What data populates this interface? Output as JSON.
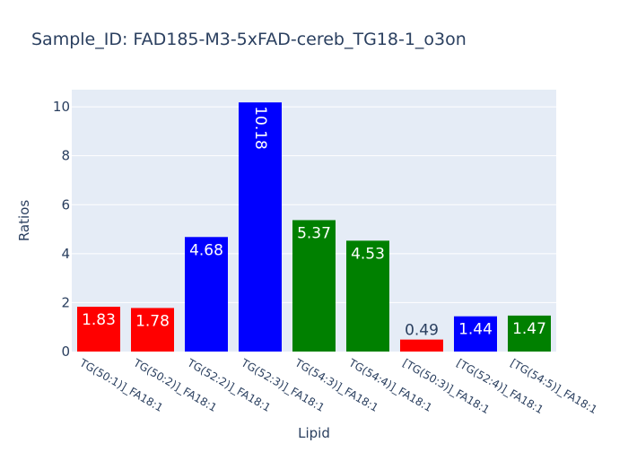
{
  "chart_data": {
    "type": "bar",
    "title": "Sample_ID: FAD185-M3-5xFAD-cereb_TG18-1_o3on",
    "xlabel": "Lipid",
    "ylabel": "Ratios",
    "categories": [
      "TG(50:1)]_FA18:1",
      "TG(50:2)]_FA18:1",
      "TG(52:2)]_FA18:1",
      "TG(52:3)]_FA18:1",
      "TG(54:3)]_FA18:1",
      "TG(54:4)]_FA18:1",
      "[TG(50:3)]_FA18:1",
      "[TG(52:4)]_FA18:1",
      "[TG(54:5)]_FA18:1"
    ],
    "values": [
      1.83,
      1.78,
      4.68,
      10.18,
      5.37,
      4.53,
      0.49,
      1.44,
      1.47
    ],
    "labels": [
      "1.83",
      "1.78",
      "4.68",
      "10.18",
      "5.37",
      "4.53",
      "0.49",
      "1.44",
      "1.47"
    ],
    "colors": [
      "#ff0000",
      "#ff0000",
      "#0000ff",
      "#0000ff",
      "#008000",
      "#008000",
      "#ff0000",
      "#0000ff",
      "#008000"
    ],
    "ylim": [
      0,
      10.7
    ],
    "yticks": [
      0,
      2,
      4,
      6,
      8,
      10
    ],
    "grid": true,
    "plot_background": "#e5ecf6",
    "text_color": "#2a3f5f"
  }
}
